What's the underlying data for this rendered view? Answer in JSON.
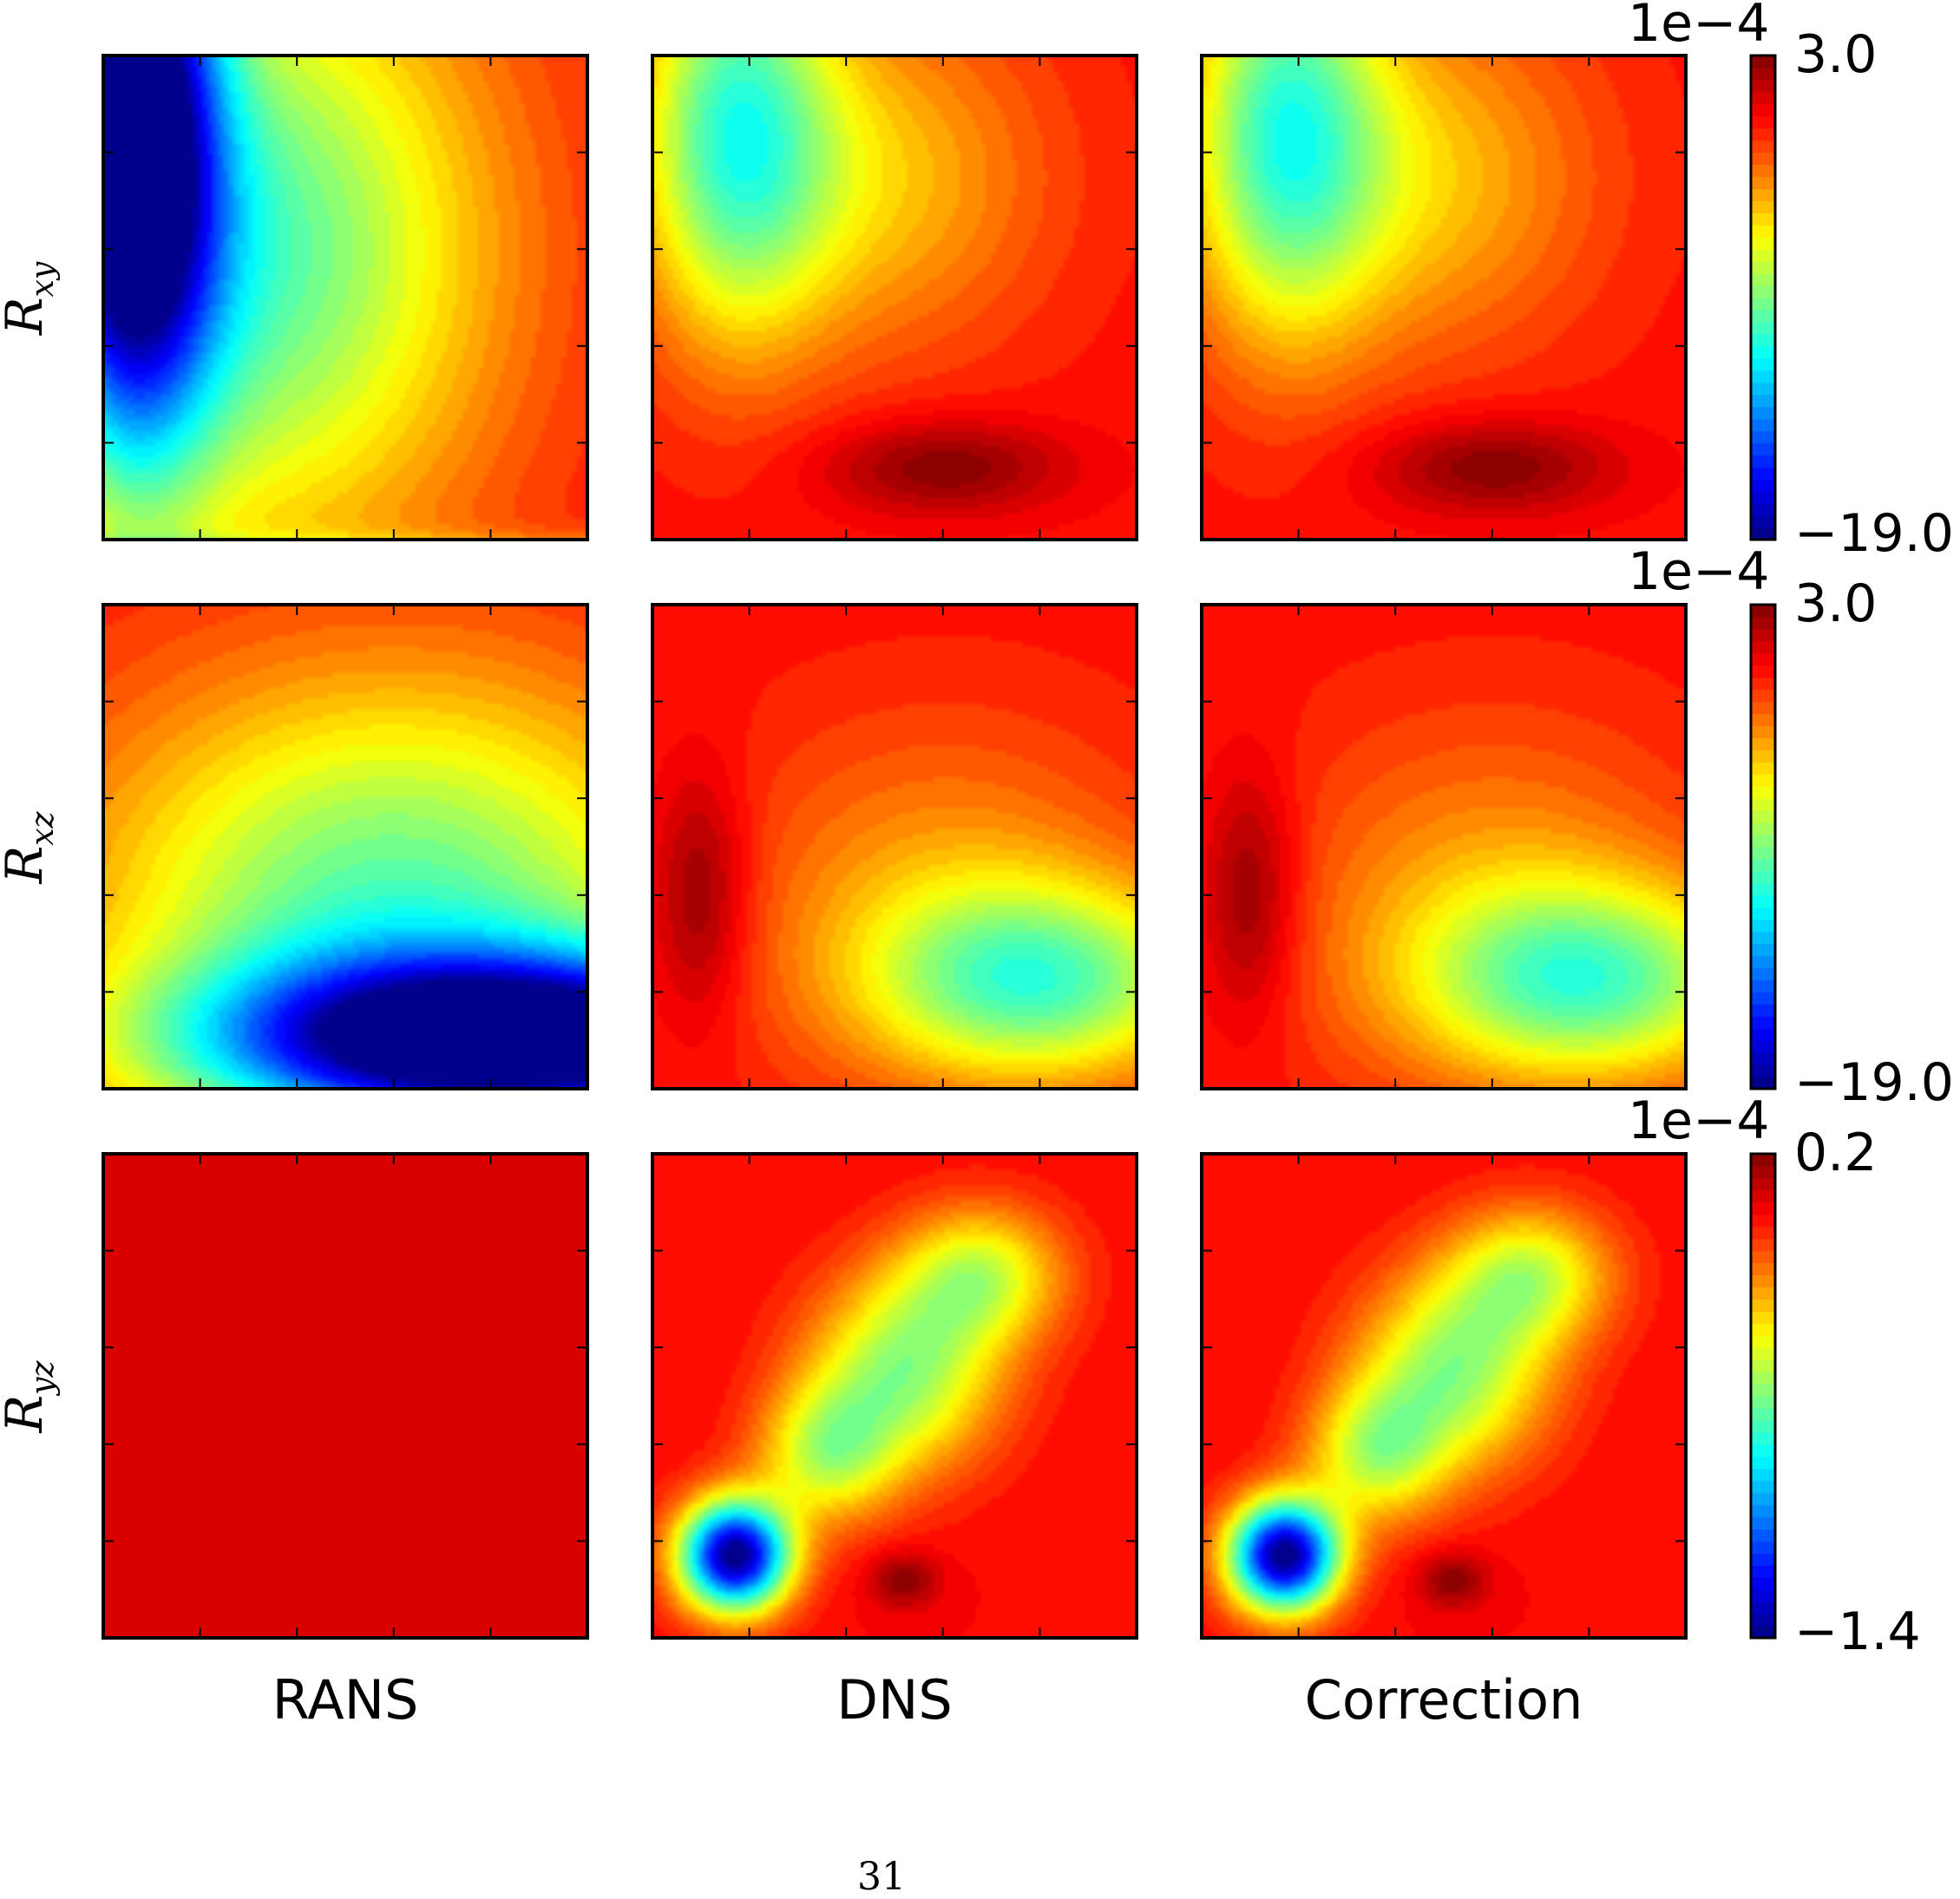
{
  "chart_data": {
    "type": "heatmap",
    "colormap": "jet",
    "grid": false,
    "rows": [
      {
        "label_base": "R",
        "label_sub": "xy",
        "cb_scale": "1e−4",
        "cb_max": "3.0",
        "cb_min": "−19.0",
        "vmin": -19.0,
        "vmax": 3.0
      },
      {
        "label_base": "R",
        "label_sub": "xz",
        "cb_scale": "1e−4",
        "cb_max": "3.0",
        "cb_min": "−19.0",
        "vmin": -19.0,
        "vmax": 3.0
      },
      {
        "label_base": "R",
        "label_sub": "yz",
        "cb_scale": "1e−4",
        "cb_max": "0.2",
        "cb_min": "−1.4",
        "vmin": -1.4,
        "vmax": 0.2
      }
    ],
    "columns": [
      "RANS",
      "DNS",
      "Correction"
    ],
    "fields": {
      "xy_rans": {
        "base": 0.0,
        "blobs": [
          {
            "cx": 0.06,
            "cy": 0.85,
            "sx": 0.12,
            "sy": 0.45,
            "a": -19
          },
          {
            "cx": 0.3,
            "cy": 0.6,
            "sx": 0.35,
            "sy": 0.45,
            "a": -9
          }
        ]
      },
      "xy_dns": {
        "base": 0.0,
        "blobs": [
          {
            "cx": 0.17,
            "cy": 0.85,
            "sx": 0.14,
            "sy": 0.3,
            "a": -8.5
          },
          {
            "cx": 0.45,
            "cy": 0.75,
            "sx": 0.25,
            "sy": 0.25,
            "a": -4
          },
          {
            "cx": 0.6,
            "cy": 0.15,
            "sx": 0.18,
            "sy": 0.07,
            "a": 3
          }
        ]
      },
      "xy_corr": {
        "base": 0.0,
        "blobs": [
          {
            "cx": 0.17,
            "cy": 0.85,
            "sx": 0.14,
            "sy": 0.3,
            "a": -8.5
          },
          {
            "cx": 0.45,
            "cy": 0.75,
            "sx": 0.25,
            "sy": 0.25,
            "a": -4
          },
          {
            "cx": 0.6,
            "cy": 0.15,
            "sx": 0.18,
            "sy": 0.07,
            "a": 3
          }
        ]
      },
      "xz_rans": {
        "base": 0.0,
        "blobs": [
          {
            "cx": 0.88,
            "cy": 0.1,
            "sx": 0.45,
            "sy": 0.12,
            "a": -19
          },
          {
            "cx": 0.6,
            "cy": 0.35,
            "sx": 0.45,
            "sy": 0.35,
            "a": -9
          }
        ]
      },
      "xz_dns": {
        "base": 0.0,
        "blobs": [
          {
            "cx": 0.8,
            "cy": 0.22,
            "sx": 0.25,
            "sy": 0.14,
            "a": -8
          },
          {
            "cx": 0.6,
            "cy": 0.4,
            "sx": 0.3,
            "sy": 0.25,
            "a": -3
          },
          {
            "cx": 0.1,
            "cy": 0.4,
            "sx": 0.07,
            "sy": 0.18,
            "a": 3
          }
        ]
      },
      "xz_corr": {
        "base": 0.0,
        "blobs": [
          {
            "cx": 0.8,
            "cy": 0.22,
            "sx": 0.25,
            "sy": 0.14,
            "a": -8
          },
          {
            "cx": 0.6,
            "cy": 0.4,
            "sx": 0.3,
            "sy": 0.25,
            "a": -3
          },
          {
            "cx": 0.1,
            "cy": 0.4,
            "sx": 0.07,
            "sy": 0.18,
            "a": 3
          }
        ]
      },
      "yz_rans": {
        "base": 0.0,
        "blobs": []
      },
      "yz_dns": {
        "base": 0.0,
        "blobs": [
          {
            "cx": 0.17,
            "cy": 0.17,
            "sx": 0.08,
            "sy": 0.08,
            "a": -1.4
          },
          {
            "cx": 0.52,
            "cy": 0.55,
            "sx": 0.14,
            "sy": 0.14,
            "a": -0.55
          },
          {
            "cx": 0.68,
            "cy": 0.75,
            "sx": 0.12,
            "sy": 0.1,
            "a": -0.45
          },
          {
            "cx": 0.36,
            "cy": 0.38,
            "sx": 0.1,
            "sy": 0.1,
            "a": -0.45
          },
          {
            "cx": 0.52,
            "cy": 0.12,
            "sx": 0.05,
            "sy": 0.04,
            "a": 0.2
          }
        ]
      },
      "yz_corr": {
        "base": 0.0,
        "blobs": [
          {
            "cx": 0.17,
            "cy": 0.17,
            "sx": 0.08,
            "sy": 0.08,
            "a": -1.4
          },
          {
            "cx": 0.52,
            "cy": 0.55,
            "sx": 0.14,
            "sy": 0.14,
            "a": -0.55
          },
          {
            "cx": 0.68,
            "cy": 0.75,
            "sx": 0.12,
            "sy": 0.1,
            "a": -0.45
          },
          {
            "cx": 0.36,
            "cy": 0.38,
            "sx": 0.1,
            "sy": 0.1,
            "a": -0.45
          },
          {
            "cx": 0.52,
            "cy": 0.12,
            "sx": 0.05,
            "sy": 0.04,
            "a": 0.2
          }
        ]
      }
    },
    "field_order": [
      [
        "xy_rans",
        "xy_dns",
        "xy_corr"
      ],
      [
        "xz_rans",
        "xz_dns",
        "xz_corr"
      ],
      [
        "yz_rans",
        "yz_dns",
        "yz_corr"
      ]
    ]
  },
  "page_number": "31"
}
